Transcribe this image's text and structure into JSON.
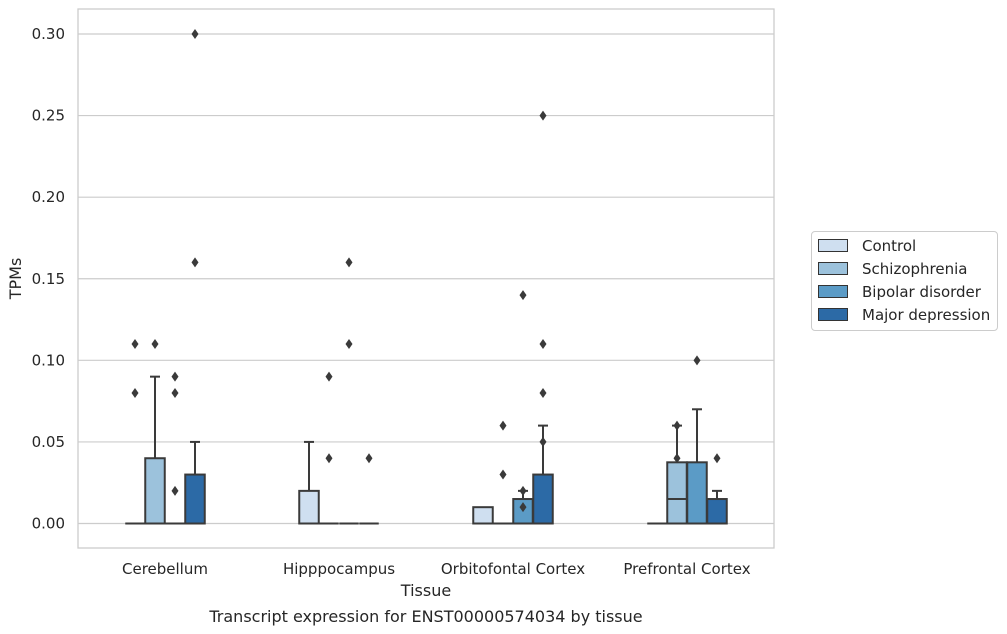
{
  "chart_data": {
    "type": "box",
    "title": "",
    "caption": "Transcript expression for ENST00000574034 by tissue",
    "xlabel": "Tissue",
    "ylabel": "TPMs",
    "ylim": [
      -0.015,
      0.315
    ],
    "yticks": [
      "0.00",
      "0.05",
      "0.10",
      "0.15",
      "0.20",
      "0.25",
      "0.30"
    ],
    "ytick_values": [
      0,
      0.05,
      0.1,
      0.15,
      0.2,
      0.25,
      0.3
    ],
    "grid": "horizontal",
    "legend_position": "right",
    "categories": [
      "Cerebellum",
      "Hipppocampus",
      "Orbitofontal Cortex",
      "Prefrontal Cortex"
    ],
    "series": [
      {
        "name": "Control",
        "color": "#cfdff0",
        "boxes": [
          {
            "q1": 0,
            "median": 0,
            "q3": 0,
            "whisker_low": 0,
            "whisker_high": 0,
            "outliers": [
              0.11,
              0.08
            ]
          },
          {
            "q1": 0,
            "median": 0,
            "q3": 0.02,
            "whisker_low": 0,
            "whisker_high": 0.05,
            "outliers": []
          },
          {
            "q1": 0,
            "median": 0,
            "q3": 0.01,
            "whisker_low": 0,
            "whisker_high": 0.01,
            "outliers": []
          },
          {
            "q1": 0,
            "median": 0,
            "q3": 0,
            "whisker_low": 0,
            "whisker_high": 0,
            "outliers": []
          }
        ]
      },
      {
        "name": "Schizophrenia",
        "color": "#9cc2dc",
        "boxes": [
          {
            "q1": 0,
            "median": 0,
            "q3": 0.04,
            "whisker_low": 0,
            "whisker_high": 0.09,
            "outliers": [
              0.11
            ]
          },
          {
            "q1": 0,
            "median": 0,
            "q3": 0,
            "whisker_low": 0,
            "whisker_high": 0,
            "outliers": [
              0.09,
              0.04
            ]
          },
          {
            "q1": 0,
            "median": 0,
            "q3": 0,
            "whisker_low": 0,
            "whisker_high": 0,
            "outliers": [
              0.06,
              0.03
            ]
          },
          {
            "q1": 0,
            "median": 0.015,
            "q3": 0.0375,
            "whisker_low": 0,
            "whisker_high": 0.06,
            "outliers": [
              0.06,
              0.04
            ]
          }
        ]
      },
      {
        "name": "Bipolar disorder",
        "color": "#5b9bc6",
        "boxes": [
          {
            "q1": 0,
            "median": 0,
            "q3": 0,
            "whisker_low": 0,
            "whisker_high": 0,
            "outliers": [
              0.09,
              0.08,
              0.02
            ]
          },
          {
            "q1": 0,
            "median": 0,
            "q3": 0,
            "whisker_low": 0,
            "whisker_high": 0,
            "outliers": [
              0.16,
              0.11
            ]
          },
          {
            "q1": 0,
            "median": 0,
            "q3": 0.015,
            "whisker_low": 0,
            "whisker_high": 0.02,
            "outliers": [
              0.14,
              0.02,
              0.01
            ]
          },
          {
            "q1": 0,
            "median": 0,
            "q3": 0.0375,
            "whisker_low": 0,
            "whisker_high": 0.07,
            "outliers": [
              0.1
            ]
          }
        ]
      },
      {
        "name": "Major depression",
        "color": "#2c6aa6",
        "boxes": [
          {
            "q1": 0,
            "median": 0,
            "q3": 0.03,
            "whisker_low": 0,
            "whisker_high": 0.05,
            "outliers": [
              0.3,
              0.16
            ]
          },
          {
            "q1": 0,
            "median": 0,
            "q3": 0,
            "whisker_low": 0,
            "whisker_high": 0,
            "outliers": [
              0.04
            ]
          },
          {
            "q1": 0,
            "median": 0,
            "q3": 0.03,
            "whisker_low": 0,
            "whisker_high": 0.06,
            "outliers": [
              0.25,
              0.11,
              0.05,
              0.08
            ]
          },
          {
            "q1": 0,
            "median": 0,
            "q3": 0.015,
            "whisker_low": 0,
            "whisker_high": 0.02,
            "outliers": [
              0.04
            ]
          }
        ]
      }
    ]
  }
}
